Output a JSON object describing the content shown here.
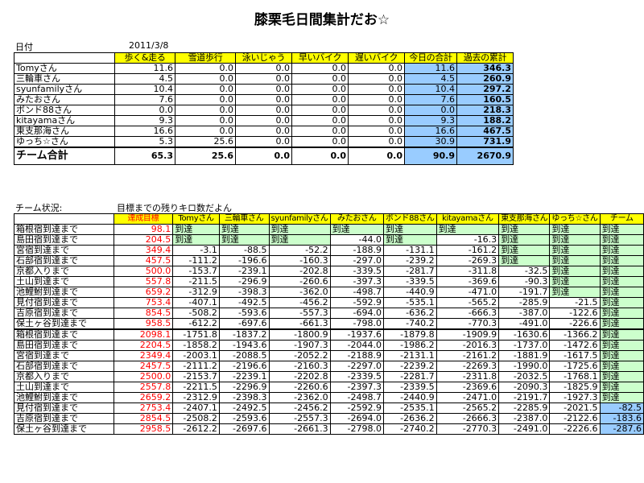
{
  "title": "膝栗毛日間集計だお☆",
  "date_label": "日付",
  "date_value": "2011/3/8",
  "table1": {
    "headers": [
      "",
      "歩く&走る",
      "雪道歩行",
      "泳いじゃう",
      "早いバイク",
      "遅いバイク",
      "今日の合計",
      "過去の累計"
    ],
    "rows": [
      [
        "Tomyさん",
        "11.6",
        "0.0",
        "0.0",
        "0.0",
        "0.0",
        "11.6",
        "346.3"
      ],
      [
        "三輪車さん",
        "4.5",
        "0.0",
        "0.0",
        "0.0",
        "0.0",
        "4.5",
        "260.9"
      ],
      [
        "syunfamilyさん",
        "10.4",
        "0.0",
        "0.0",
        "0.0",
        "0.0",
        "10.4",
        "297.2"
      ],
      [
        "みたおさん",
        "7.6",
        "0.0",
        "0.0",
        "0.0",
        "0.0",
        "7.6",
        "160.5"
      ],
      [
        "ボンド88さん",
        "0.0",
        "0.0",
        "0.0",
        "0.0",
        "0.0",
        "0.0",
        "218.3"
      ],
      [
        "kitayamaさん",
        "9.3",
        "0.0",
        "0.0",
        "0.0",
        "0.0",
        "9.3",
        "188.2"
      ],
      [
        "東支那海さん",
        "16.6",
        "0.0",
        "0.0",
        "0.0",
        "0.0",
        "16.6",
        "467.5"
      ],
      [
        "ゆっち☆さん",
        "5.3",
        "25.6",
        "0.0",
        "0.0",
        "0.0",
        "30.9",
        "731.9"
      ]
    ],
    "total": [
      "チーム合計",
      "65.3",
      "25.6",
      "0.0",
      "0.0",
      "0.0",
      "90.9",
      "2670.9"
    ]
  },
  "team_status_label": "チーム状況:",
  "remaining_label": "目標までの残りキロ数だよん",
  "table2": {
    "headers": [
      "",
      "達成目標",
      "Tomyさん",
      "三輪車さん",
      "syunfamilyさん",
      "みたおさん",
      "ボンド88さん",
      "kitayamaさん",
      "東支那海さん",
      "ゆっち☆さん",
      "チーム"
    ],
    "rows": [
      [
        "箱根宿到達まで",
        "98.1",
        "到達",
        "到達",
        "到達",
        "到達",
        "到達",
        "到達",
        "到達",
        "到達",
        "到達"
      ],
      [
        "島田宿到達まで",
        "204.5",
        "到達",
        "到達",
        "到達",
        "-44.0",
        "到達",
        "-16.3",
        "到達",
        "到達",
        "到達"
      ],
      [
        "宮宿到達まで",
        "349.4",
        "-3.1",
        "-88.5",
        "-52.2",
        "-188.9",
        "-131.1",
        "-161.2",
        "到達",
        "到達",
        "到達"
      ],
      [
        "石部宿到達まで",
        "457.5",
        "-111.2",
        "-196.6",
        "-160.3",
        "-297.0",
        "-239.2",
        "-269.3",
        "到達",
        "到達",
        "到達"
      ],
      [
        "京都入りまで",
        "500.0",
        "-153.7",
        "-239.1",
        "-202.8",
        "-339.5",
        "-281.7",
        "-311.8",
        "-32.5",
        "到達",
        "到達"
      ],
      [
        "土山到達まで",
        "557.8",
        "-211.5",
        "-296.9",
        "-260.6",
        "-397.3",
        "-339.5",
        "-369.6",
        "-90.3",
        "到達",
        "到達"
      ],
      [
        "池鯉鮒到達まで",
        "659.2",
        "-312.9",
        "-398.3",
        "-362.0",
        "-498.7",
        "-440.9",
        "-471.0",
        "-191.7",
        "到達",
        "到達"
      ],
      [
        "見付宿到達まで",
        "753.4",
        "-407.1",
        "-492.5",
        "-456.2",
        "-592.9",
        "-535.1",
        "-565.2",
        "-285.9",
        "-21.5",
        "到達"
      ],
      [
        "吉原宿到達まで",
        "854.5",
        "-508.2",
        "-593.6",
        "-557.3",
        "-694.0",
        "-636.2",
        "-666.3",
        "-387.0",
        "-122.6",
        "到達"
      ],
      [
        "保土ヶ谷到達まで",
        "958.5",
        "-612.2",
        "-697.6",
        "-661.3",
        "-798.0",
        "-740.2",
        "-770.3",
        "-491.0",
        "-226.6",
        "到達"
      ],
      [
        "箱根宿到達まで",
        "2098.1",
        "-1751.8",
        "-1837.2",
        "-1800.9",
        "-1937.6",
        "-1879.8",
        "-1909.9",
        "-1630.6",
        "-1366.2",
        "到達"
      ],
      [
        "島田宿到達まで",
        "2204.5",
        "-1858.2",
        "-1943.6",
        "-1907.3",
        "-2044.0",
        "-1986.2",
        "-2016.3",
        "-1737.0",
        "-1472.6",
        "到達"
      ],
      [
        "宮宿到達まで",
        "2349.4",
        "-2003.1",
        "-2088.5",
        "-2052.2",
        "-2188.9",
        "-2131.1",
        "-2161.2",
        "-1881.9",
        "-1617.5",
        "到達"
      ],
      [
        "石部宿到達まで",
        "2457.5",
        "-2111.2",
        "-2196.6",
        "-2160.3",
        "-2297.0",
        "-2239.2",
        "-2269.3",
        "-1990.0",
        "-1725.6",
        "到達"
      ],
      [
        "京都入りまで",
        "2500.0",
        "-2153.7",
        "-2239.1",
        "-2202.8",
        "-2339.5",
        "-2281.7",
        "-2311.8",
        "-2032.5",
        "-1768.1",
        "到達"
      ],
      [
        "土山到達まで",
        "2557.8",
        "-2211.5",
        "-2296.9",
        "-2260.6",
        "-2397.3",
        "-2339.5",
        "-2369.6",
        "-2090.3",
        "-1825.9",
        "到達"
      ],
      [
        "池鯉鮒到達まで",
        "2659.2",
        "-2312.9",
        "-2398.3",
        "-2362.0",
        "-2498.7",
        "-2440.9",
        "-2471.0",
        "-2191.7",
        "-1927.3",
        "到達"
      ],
      [
        "見付宿到達まで",
        "2753.4",
        "-2407.1",
        "-2492.5",
        "-2456.2",
        "-2592.9",
        "-2535.1",
        "-2565.2",
        "-2285.9",
        "-2021.5",
        "-82.5"
      ],
      [
        "吉原宿到達まで",
        "2854.5",
        "-2508.2",
        "-2593.6",
        "-2557.3",
        "-2694.0",
        "-2636.2",
        "-2666.3",
        "-2387.0",
        "-2122.6",
        "-183.6"
      ],
      [
        "保土ヶ谷到達まで",
        "2958.5",
        "-2612.2",
        "-2697.6",
        "-2661.3",
        "-2798.0",
        "-2740.2",
        "-2770.3",
        "-2491.0",
        "-2226.6",
        "-287.6"
      ]
    ]
  },
  "colors": {
    "header_yellow": "#ffff00",
    "reached_green": "#ccffcc",
    "remaining_blue": "#99ccff",
    "target_red": "#ff0000"
  }
}
